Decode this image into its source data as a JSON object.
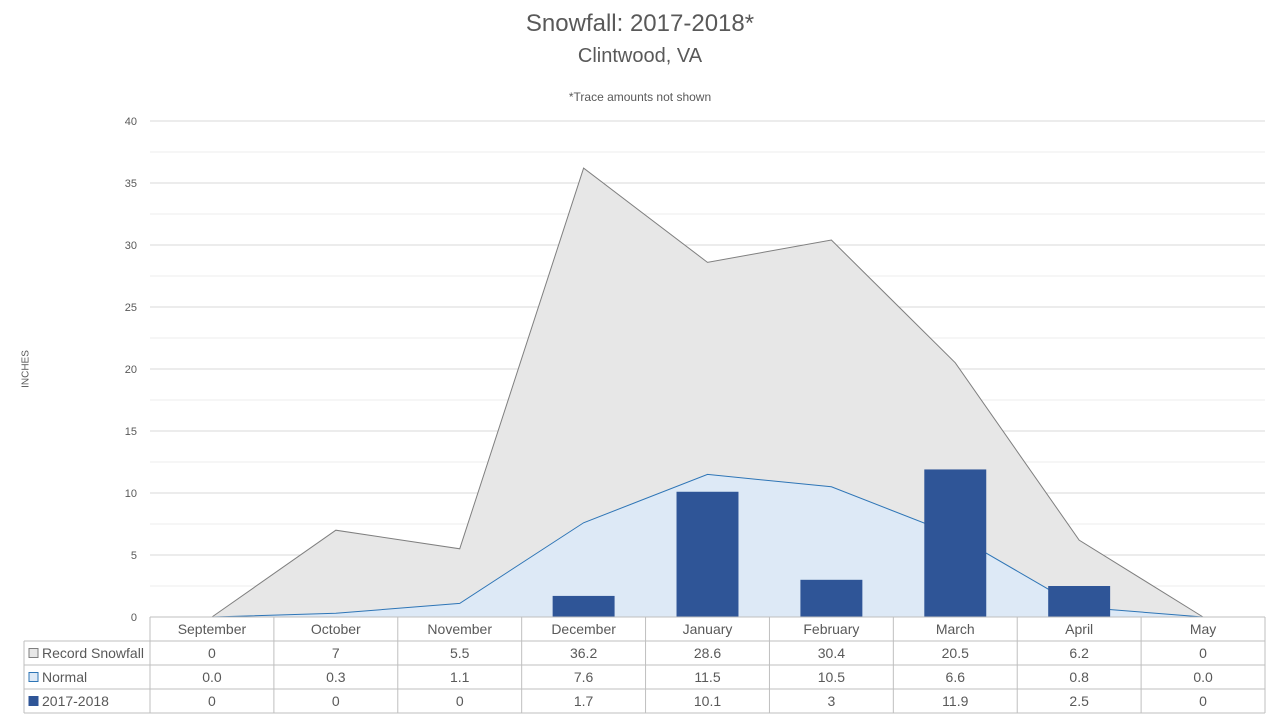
{
  "chart_data": {
    "type": "area",
    "title": "Snowfall: 2017-2018*",
    "subtitle": "Clintwood, VA",
    "note": "*Trace amounts not shown",
    "ylabel": "INCHES",
    "ylim": [
      0,
      40
    ],
    "yticks": [
      0,
      5,
      10,
      15,
      20,
      25,
      30,
      35,
      40
    ],
    "grid": true,
    "legend": "data-table-left",
    "categories": [
      "September",
      "October",
      "November",
      "December",
      "January",
      "February",
      "March",
      "April",
      "May"
    ],
    "series": [
      {
        "name": "Record Snowfall",
        "kind": "area",
        "color": "#e7e7e7",
        "line_color": "#7f7f7f",
        "values": [
          0,
          7,
          5.5,
          36.2,
          28.6,
          30.4,
          20.5,
          6.2,
          0
        ],
        "labels": [
          "0",
          "7",
          "5.5",
          "36.2",
          "28.6",
          "30.4",
          "20.5",
          "6.2",
          "0"
        ]
      },
      {
        "name": "Normal",
        "kind": "area",
        "color": "#dde9f6",
        "line_color": "#2e75b6",
        "values": [
          0.0,
          0.3,
          1.1,
          7.6,
          11.5,
          10.5,
          6.6,
          0.8,
          0.0
        ],
        "labels": [
          "0.0",
          "0.3",
          "1.1",
          "7.6",
          "11.5",
          "10.5",
          "6.6",
          "0.8",
          "0.0"
        ]
      },
      {
        "name": "2017-2018",
        "kind": "bar",
        "color": "#2f5597",
        "values": [
          0,
          0,
          0,
          1.7,
          10.1,
          3,
          11.9,
          2.5,
          0
        ],
        "labels": [
          "0",
          "0",
          "0",
          "1.7",
          "10.1",
          "3",
          "11.9",
          "2.5",
          "0"
        ]
      }
    ]
  }
}
